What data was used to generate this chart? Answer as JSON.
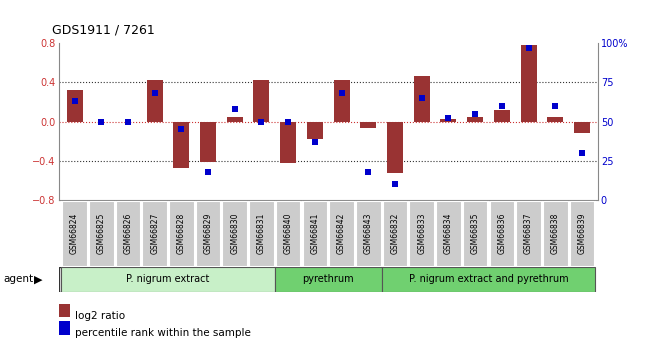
{
  "title": "GDS1911 / 7261",
  "samples": [
    "GSM66824",
    "GSM66825",
    "GSM66826",
    "GSM66827",
    "GSM66828",
    "GSM66829",
    "GSM66830",
    "GSM66831",
    "GSM66840",
    "GSM66841",
    "GSM66842",
    "GSM66843",
    "GSM66832",
    "GSM66833",
    "GSM66834",
    "GSM66835",
    "GSM66836",
    "GSM66837",
    "GSM66838",
    "GSM66839"
  ],
  "log2_ratio": [
    0.32,
    0.0,
    0.0,
    0.42,
    -0.47,
    -0.41,
    0.05,
    0.42,
    -0.42,
    -0.18,
    0.42,
    -0.07,
    -0.52,
    0.47,
    0.03,
    0.05,
    0.12,
    0.78,
    0.05,
    -0.12
  ],
  "percentile": [
    63,
    50,
    50,
    68,
    45,
    18,
    58,
    50,
    50,
    37,
    68,
    18,
    10,
    65,
    52,
    55,
    60,
    97,
    60,
    30
  ],
  "groups": [
    {
      "label": "P. nigrum extract",
      "start": 0,
      "end": 8,
      "color": "#c8efc8"
    },
    {
      "label": "pyrethrum",
      "start": 8,
      "end": 12,
      "color": "#78d878"
    },
    {
      "label": "P. nigrum extract and pyrethrum",
      "start": 12,
      "end": 20,
      "color": "#78d878"
    }
  ],
  "ylim_left": [
    -0.8,
    0.8
  ],
  "ylim_right": [
    0,
    100
  ],
  "yticks_left": [
    -0.8,
    -0.4,
    0.0,
    0.4,
    0.8
  ],
  "yticks_right": [
    0,
    25,
    50,
    75,
    100
  ],
  "ytick_labels_right": [
    "0",
    "25",
    "50",
    "75",
    "100%"
  ],
  "hlines_dotted": [
    -0.4,
    0.4
  ],
  "zero_line_y": 0.0,
  "bar_color": "#993333",
  "dot_color": "#0000cc",
  "plot_bg": "#ffffff",
  "zero_line_color": "#cc3333",
  "dot_line_color": "#333333",
  "bar_width": 0.6,
  "dot_size": 22,
  "xlabel_color": "#333333",
  "xtick_bg": "#cccccc",
  "right_axis_color": "#0000cc",
  "left_axis_color": "#cc3333"
}
